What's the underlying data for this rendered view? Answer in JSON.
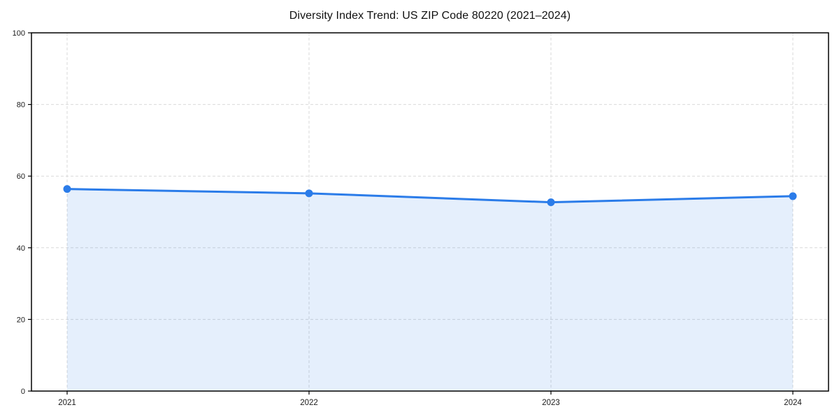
{
  "chart_data": {
    "type": "area",
    "title": "Diversity Index Trend: US ZIP Code 80220 (2021–2024)",
    "categories": [
      "2021",
      "2022",
      "2023",
      "2024"
    ],
    "series": [
      {
        "name": "Diversity Index",
        "values": [
          56.4,
          55.2,
          52.7,
          54.4
        ]
      }
    ],
    "xlabel": "",
    "ylabel": "",
    "ylim": [
      0,
      100
    ],
    "yticks": [
      0,
      20,
      40,
      60,
      80,
      100
    ],
    "grid": true,
    "legend": "none",
    "colors": {
      "line": "#2b7ce9",
      "marker": "#2b7ce9",
      "fill": "rgba(43,124,233,0.12)",
      "grid": "#d9d9d9",
      "spine": "#000000",
      "tick_label": "#1a1a1a",
      "background": "#ffffff"
    }
  }
}
